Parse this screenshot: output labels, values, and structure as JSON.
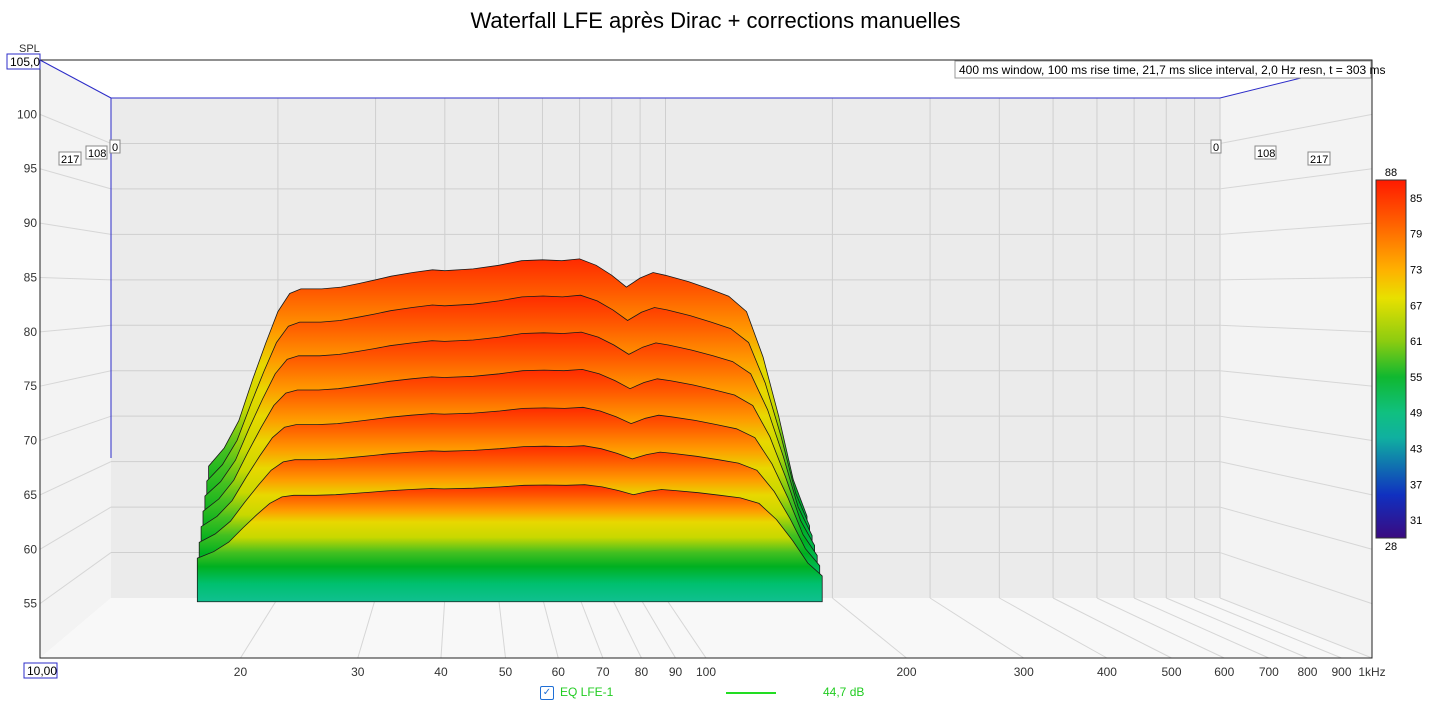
{
  "chart_data": {
    "type": "area",
    "title": "Waterfall LFE après Dirac + corrections manuelles",
    "ylabel": "SPL",
    "y_top_label": "105,0",
    "x_start_label": "10,00",
    "ylim": [
      50,
      105
    ],
    "xlim": [
      10,
      1000
    ],
    "x_scale": "log",
    "y_ticks": [
      55,
      60,
      65,
      70,
      75,
      80,
      85,
      90,
      95,
      100
    ],
    "x_ticks": [
      {
        "value": 20,
        "label": "20"
      },
      {
        "value": 30,
        "label": "30"
      },
      {
        "value": 40,
        "label": "40"
      },
      {
        "value": 50,
        "label": "50"
      },
      {
        "value": 60,
        "label": "60"
      },
      {
        "value": 70,
        "label": "70"
      },
      {
        "value": 80,
        "label": "80"
      },
      {
        "value": 90,
        "label": "90"
      },
      {
        "value": 100,
        "label": "100"
      },
      {
        "value": 200,
        "label": "200"
      },
      {
        "value": 300,
        "label": "300"
      },
      {
        "value": 400,
        "label": "400"
      },
      {
        "value": 500,
        "label": "500"
      },
      {
        "value": 600,
        "label": "600"
      },
      {
        "value": 700,
        "label": "700"
      },
      {
        "value": 800,
        "label": "800"
      },
      {
        "value": 900,
        "label": "900"
      },
      {
        "value": 1000,
        "label": "1kHz"
      }
    ],
    "time_axis_labels": [
      "0",
      "108",
      "217"
    ],
    "info_box": "400 ms window, 100 ms rise time, 21,7 ms slice interval, 2,0 Hz resn, t = 303 ms",
    "color_scale": {
      "min": 28,
      "max": 88,
      "labels": [
        88,
        85,
        79,
        73,
        67,
        61,
        55,
        49,
        43,
        37,
        31,
        28
      ]
    },
    "grid": true,
    "legend": {
      "placement": "bottom",
      "entries": [
        {
          "name": "EQ LFE-1",
          "value": "44,7 dB",
          "color": "#22dd22"
        }
      ]
    },
    "front_slice": {
      "x": [
        15,
        16,
        17,
        18,
        19,
        20,
        21,
        22,
        24,
        26,
        28,
        30,
        32,
        35,
        38,
        40,
        45,
        50,
        55,
        60,
        65,
        70,
        75,
        80,
        85,
        90,
        95,
        100,
        110,
        120,
        130,
        140,
        150,
        160,
        170,
        180
      ],
      "y": [
        64.5,
        66.5,
        69.5,
        74,
        78,
        81.5,
        83.5,
        84,
        84,
        84.2,
        84.6,
        85,
        85.4,
        85.8,
        86.1,
        86,
        86.2,
        86.6,
        87.1,
        87.2,
        87.1,
        87.3,
        86.6,
        85.5,
        84.2,
        85.2,
        85.8,
        85.5,
        84.8,
        84,
        83.2,
        81.5,
        76.5,
        70,
        63,
        59
      ]
    },
    "slices": [
      {
        "peak_freq": 22,
        "peak": 84
      },
      {
        "peak_freq": 21,
        "peak": 82
      },
      {
        "peak_freq": 21,
        "peak": 79
      },
      {
        "peak_freq": 21,
        "peak": 76
      },
      {
        "peak_freq": 21,
        "peak": 74
      },
      {
        "peak_freq": 20,
        "peak": 72
      }
    ]
  }
}
